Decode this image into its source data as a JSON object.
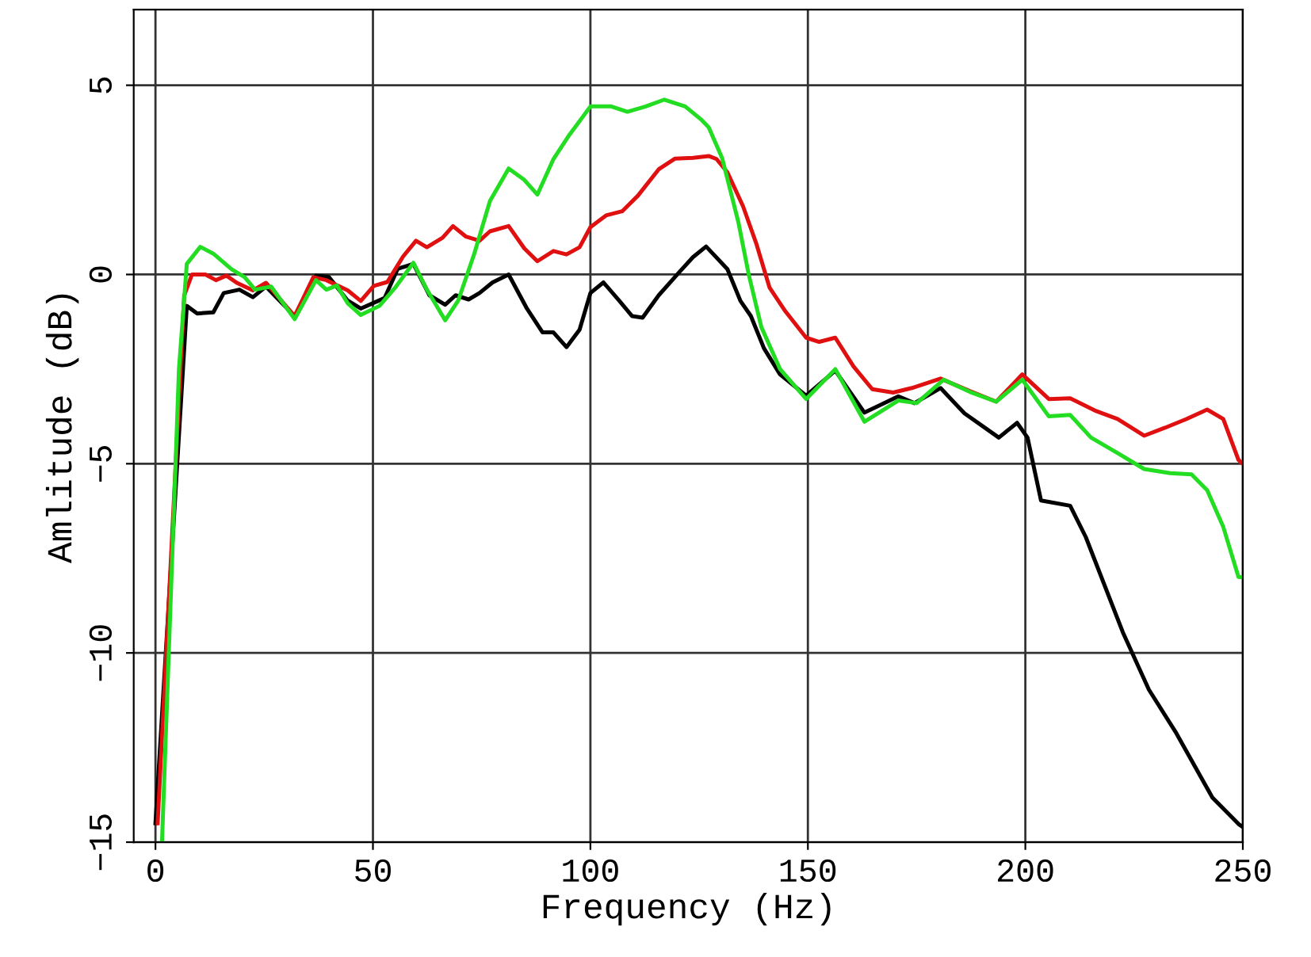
{
  "chart_data": {
    "type": "line",
    "xlabel": "Frequency (Hz)",
    "ylabel": "Amlitude (dB)",
    "xlim": [
      -5,
      250
    ],
    "ylim": [
      -15,
      7
    ],
    "xticks": [
      0,
      50,
      100,
      150,
      200,
      250
    ],
    "yticks": [
      {
        "value": -15,
        "label": "−15"
      },
      {
        "value": -10,
        "label": "−10"
      },
      {
        "value": -5,
        "label": "−5"
      },
      0,
      5
    ],
    "grid": true,
    "marker": "none",
    "line_style": "solid",
    "series": [
      {
        "color": "#000000",
        "x": [
          0,
          7.2,
          9.6,
          13.3,
          15.7,
          19.3,
          22.4,
          25.4,
          32,
          36.9,
          39.9,
          44.2,
          47.2,
          52.7,
          55.7,
          59.3,
          63,
          66.6,
          69,
          72,
          74.5,
          77.5,
          81.2,
          85.4,
          89,
          91.5,
          94.5,
          97.5,
          100,
          103,
          106.6,
          109.6,
          112,
          115.7,
          120.5,
          123.6,
          126.6,
          131.5,
          134.5,
          136.9,
          139.9,
          143.6,
          149.6,
          156.3,
          163,
          170.8,
          174.5,
          180.5,
          186,
          193.9,
          198.1,
          200.5,
          203.6,
          210.3,
          213.9,
          222.4,
          228.4,
          234.5,
          243,
          249,
          250
        ],
        "values": [
          -14.5,
          -0.83,
          -1.03,
          -1.0,
          -0.49,
          -0.4,
          -0.6,
          -0.32,
          -1.1,
          -0.03,
          -0.07,
          -0.69,
          -0.9,
          -0.62,
          0.15,
          0.28,
          -0.55,
          -0.8,
          -0.55,
          -0.66,
          -0.49,
          -0.21,
          0.0,
          -0.9,
          -1.53,
          -1.53,
          -1.92,
          -1.46,
          -0.49,
          -0.21,
          -0.69,
          -1.1,
          -1.14,
          -0.55,
          0.07,
          0.46,
          0.74,
          0.14,
          -0.7,
          -1.1,
          -1.95,
          -2.64,
          -3.2,
          -2.54,
          -3.65,
          -3.22,
          -3.4,
          -3.0,
          -3.67,
          -4.31,
          -3.92,
          -4.31,
          -5.97,
          -6.11,
          -6.94,
          -9.45,
          -10.97,
          -12.08,
          -13.82,
          -14.52,
          -14.6
        ]
      },
      {
        "color": "#e01010",
        "x": [
          0.5,
          6.6,
          8.4,
          11.5,
          13.9,
          16.3,
          18.7,
          22.4,
          25.4,
          32,
          36.3,
          39.3,
          44.2,
          47.2,
          50.2,
          53.3,
          56.9,
          59.9,
          62.4,
          66,
          68.4,
          71.4,
          74.5,
          76.9,
          81.2,
          84.8,
          87.8,
          91.5,
          94.5,
          97.5,
          100,
          103.6,
          107.3,
          110.9,
          115.7,
          119.4,
          123.6,
          127.2,
          129,
          131.5,
          135.1,
          138.1,
          141.2,
          144.8,
          149.6,
          152.6,
          156.3,
          160.5,
          164.8,
          169.6,
          173.9,
          180.5,
          187.2,
          193.3,
          199.3,
          205.4,
          210.3,
          216.3,
          221.2,
          227.3,
          232.1,
          237,
          241.8,
          245.5,
          249,
          250
        ],
        "values": [
          -14.5,
          -0.56,
          0.0,
          0.0,
          -0.15,
          -0.03,
          -0.22,
          -0.42,
          -0.22,
          -1.1,
          -0.07,
          -0.15,
          -0.42,
          -0.7,
          -0.3,
          -0.2,
          0.47,
          0.89,
          0.72,
          0.97,
          1.28,
          1.0,
          0.89,
          1.14,
          1.28,
          0.69,
          0.35,
          0.62,
          0.53,
          0.72,
          1.25,
          1.56,
          1.67,
          2.08,
          2.78,
          3.06,
          3.08,
          3.13,
          3.05,
          2.7,
          1.8,
          0.83,
          -0.35,
          -0.97,
          -1.67,
          -1.78,
          -1.67,
          -2.43,
          -3.03,
          -3.12,
          -3.0,
          -2.75,
          -3.08,
          -3.36,
          -2.64,
          -3.29,
          -3.27,
          -3.61,
          -3.82,
          -4.26,
          -4.05,
          -3.82,
          -3.57,
          -3.82,
          -4.9,
          -5.0
        ]
      },
      {
        "color": "#22dd22",
        "x": [
          1.5,
          5.4,
          7.2,
          10.3,
          13.3,
          17.5,
          20.5,
          22.9,
          26.6,
          32,
          36.9,
          39.3,
          41.7,
          44.2,
          47.2,
          51.5,
          55.1,
          59.3,
          62.4,
          66.6,
          69.6,
          73.3,
          76.9,
          81.2,
          84.8,
          87.8,
          91.5,
          95.1,
          100,
          104.8,
          108.5,
          112.7,
          117,
          121.8,
          125.4,
          127.2,
          130.3,
          134,
          136.4,
          139.3,
          143.6,
          149.6,
          156.3,
          163,
          170.8,
          175,
          181.2,
          187.2,
          193.3,
          199.3,
          205.4,
          210.3,
          215.1,
          221.2,
          227.3,
          233.3,
          238.2,
          241.8,
          245.5,
          249,
          250
        ],
        "values": [
          -15,
          -2.5,
          0.28,
          0.73,
          0.55,
          0.14,
          -0.07,
          -0.4,
          -0.32,
          -1.18,
          -0.15,
          -0.4,
          -0.29,
          -0.76,
          -1.07,
          -0.83,
          -0.35,
          0.31,
          -0.4,
          -1.21,
          -0.69,
          0.55,
          1.94,
          2.8,
          2.5,
          2.11,
          3.05,
          3.68,
          4.44,
          4.44,
          4.3,
          4.44,
          4.62,
          4.44,
          4.1,
          3.89,
          3.07,
          1.39,
          0.0,
          -1.39,
          -2.5,
          -3.29,
          -2.5,
          -3.89,
          -3.33,
          -3.4,
          -2.78,
          -3.1,
          -3.36,
          -2.78,
          -3.75,
          -3.71,
          -4.31,
          -4.72,
          -5.14,
          -5.25,
          -5.28,
          -5.7,
          -6.67,
          -7.99,
          -8.0
        ]
      }
    ]
  }
}
